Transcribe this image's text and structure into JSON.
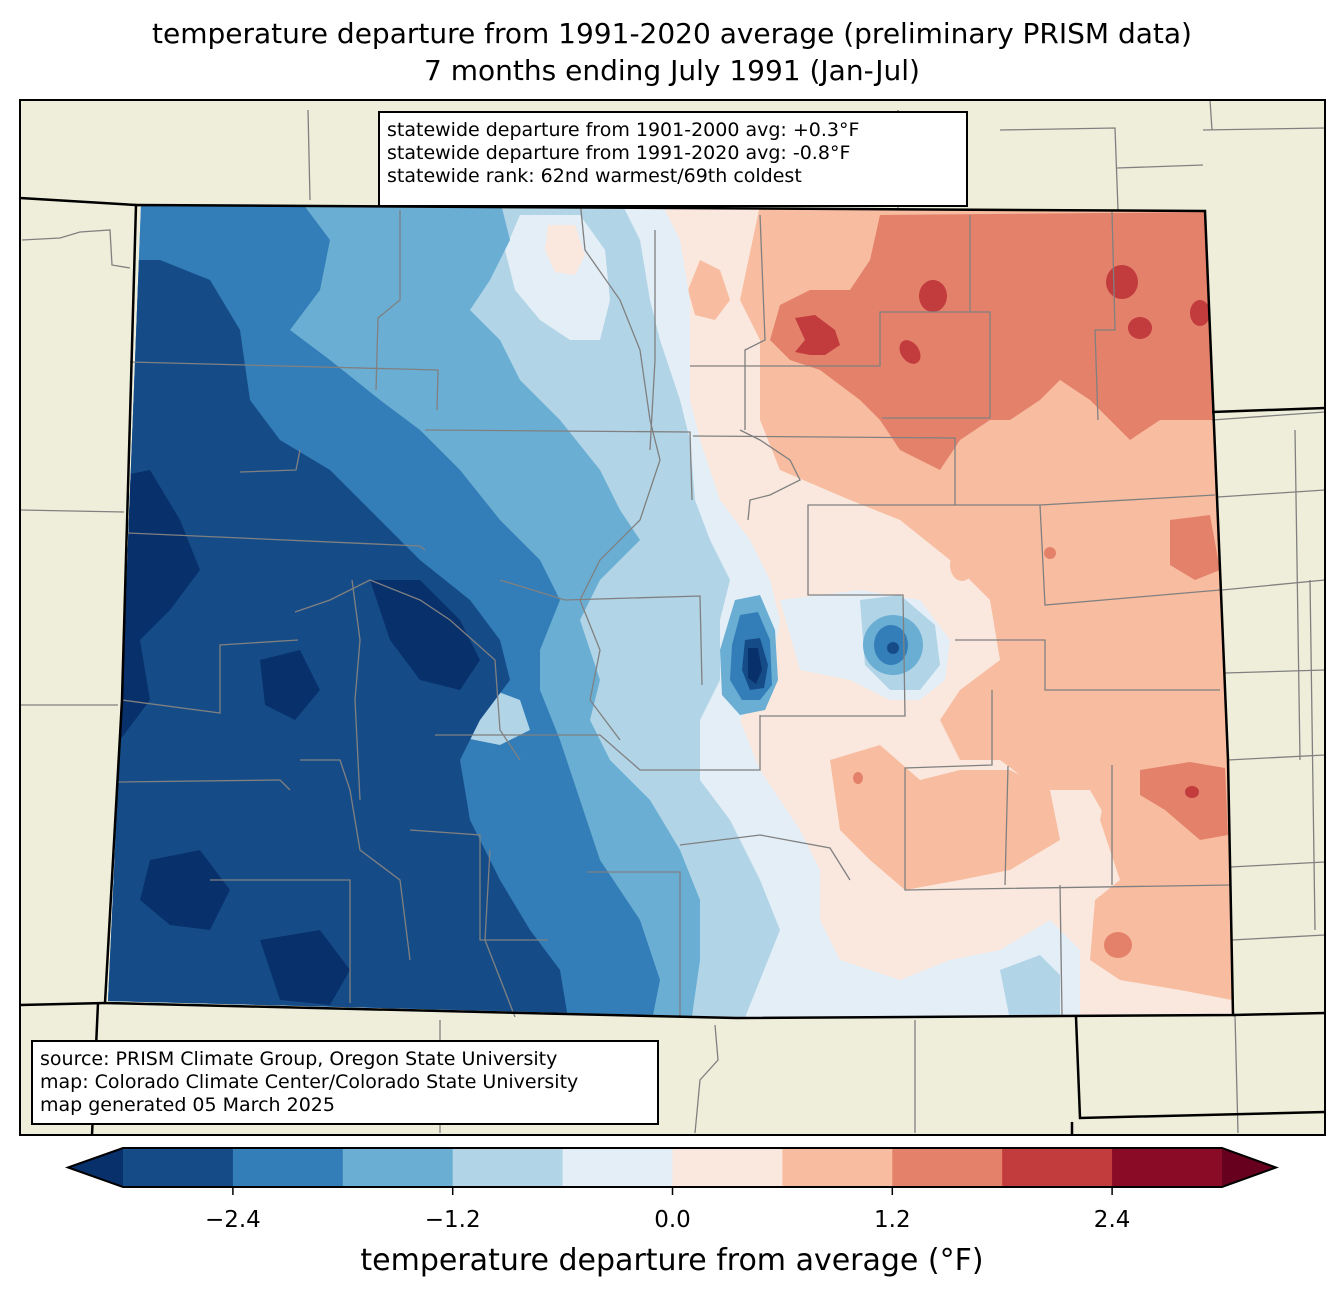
{
  "title": {
    "line1": "temperature departure from 1991-2020 average (preliminary PRISM data)",
    "line2": "7 months ending July 1991 (Jan-Jul)"
  },
  "stats_box": {
    "line1": "statewide departure from 1901-2000 avg: +0.3°F",
    "line2": "statewide departure from 1991-2020 avg: -0.8°F",
    "line3": "statewide rank: 62nd warmest/69th coldest"
  },
  "source_box": {
    "line1": "source: PRISM Climate Group, Oregon State University",
    "line2": "map: Colorado Climate Center/Colorado State University",
    "line3": "map generated 05 March 2025"
  },
  "colorbar": {
    "label": "temperature departure from average (°F)",
    "ticks": [
      "−2.4",
      "−1.2",
      "0.0",
      "1.2",
      "2.4"
    ],
    "tick_values": [
      -2.4,
      -1.2,
      0.0,
      1.2,
      2.4
    ],
    "bounds": [
      -3.0,
      -2.4,
      -1.8,
      -1.2,
      -0.6,
      0.0,
      0.6,
      1.2,
      1.8,
      2.4,
      3.0
    ],
    "under_color": "#08306b",
    "over_color": "#67001f",
    "colors": [
      "#154c88",
      "#337eb8",
      "#6aaed3",
      "#b1d4e7",
      "#e4eef6",
      "#fae8de",
      "#f8bda0",
      "#e4816a",
      "#c23b3d",
      "#8a0b25"
    ],
    "extend": "both"
  },
  "map_colors": {
    "background": "#efeedb",
    "county_line": "#808080",
    "state_line": "#000000"
  },
  "chart_data": {
    "type": "heatmap",
    "title": "temperature departure from 1991-2020 average (preliminary PRISM data) — 7 months ending July 1991 (Jan-Jul)",
    "region": "Colorado",
    "variable": "temperature departure from average (°F)",
    "levels": [
      -3.0,
      -2.4,
      -1.8,
      -1.2,
      -0.6,
      0.0,
      0.6,
      1.2,
      1.8,
      2.4,
      3.0
    ],
    "zones": [
      {
        "area": "far west / southwest",
        "departure_range": [
          -3.0,
          -2.4
        ]
      },
      {
        "area": "western mountains",
        "departure_range": [
          -2.4,
          -1.2
        ]
      },
      {
        "area": "front range / foothills",
        "departure_range": [
          -1.2,
          0.0
        ]
      },
      {
        "area": "eastern plains (central)",
        "departure_range": [
          0.0,
          1.2
        ]
      },
      {
        "area": "northeast plains",
        "departure_range": [
          1.2,
          2.4
        ]
      },
      {
        "area": "northeast hotspots",
        "departure_range": [
          1.8,
          2.4
        ]
      }
    ],
    "statewide": {
      "departure_1901_2000": 0.3,
      "departure_1991_2020": -0.8,
      "rank_warmest": 62,
      "rank_coldest": 69
    }
  }
}
